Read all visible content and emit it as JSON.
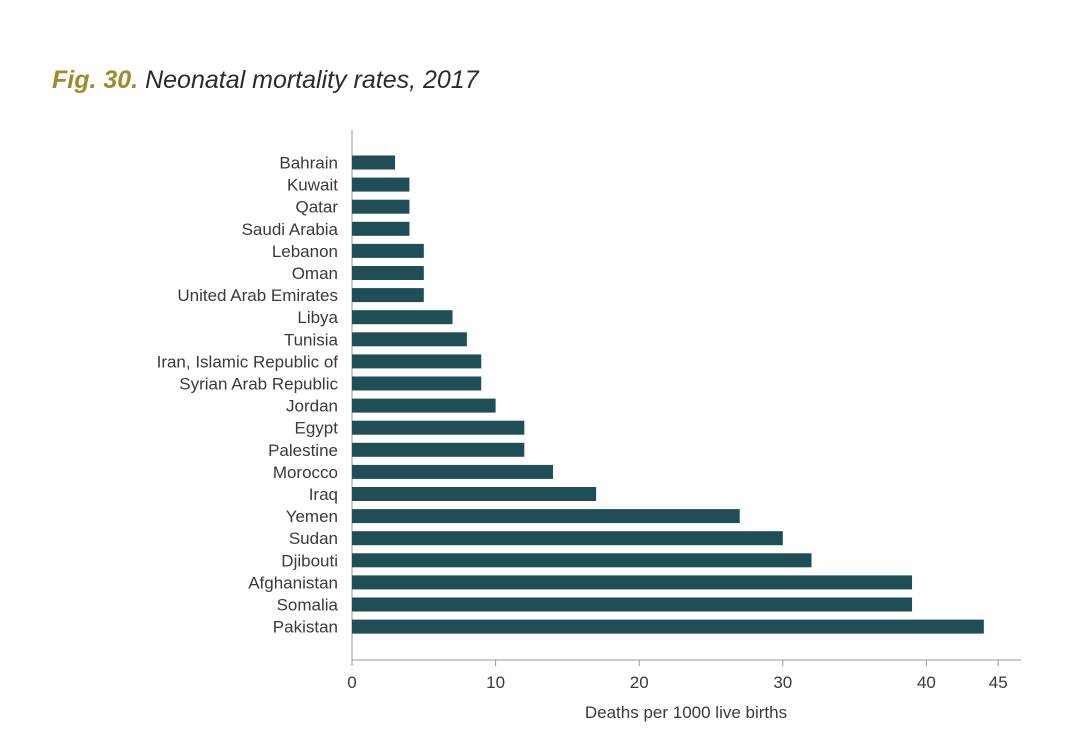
{
  "figure": {
    "number": "Fig. 30.",
    "title": "Neonatal mortality rates, 2017"
  },
  "chart_data": {
    "type": "bar",
    "orientation": "horizontal",
    "title": "Neonatal mortality rates, 2017",
    "xlabel": "Deaths per 1000 live births",
    "ylabel": "",
    "xlim": [
      0,
      46
    ],
    "xticks": [
      0,
      10,
      20,
      30,
      40,
      45
    ],
    "grid": false,
    "bar_color": "#1f4e57",
    "categories": [
      "Bahrain",
      "Kuwait",
      "Qatar",
      "Saudi Arabia",
      "Lebanon",
      "Oman",
      "United Arab Emirates",
      "Libya",
      "Tunisia",
      "Iran, Islamic Republic of",
      "Syrian Arab Republic",
      "Jordan",
      "Egypt",
      "Palestine",
      "Morocco",
      "Iraq",
      "Yemen",
      "Sudan",
      "Djibouti",
      "Afghanistan",
      "Somalia",
      "Pakistan"
    ],
    "values": [
      3,
      4,
      4,
      4,
      5,
      5,
      5,
      7,
      8,
      9,
      9,
      10,
      12,
      12,
      14,
      17,
      27,
      30,
      32,
      39,
      39,
      44
    ]
  }
}
